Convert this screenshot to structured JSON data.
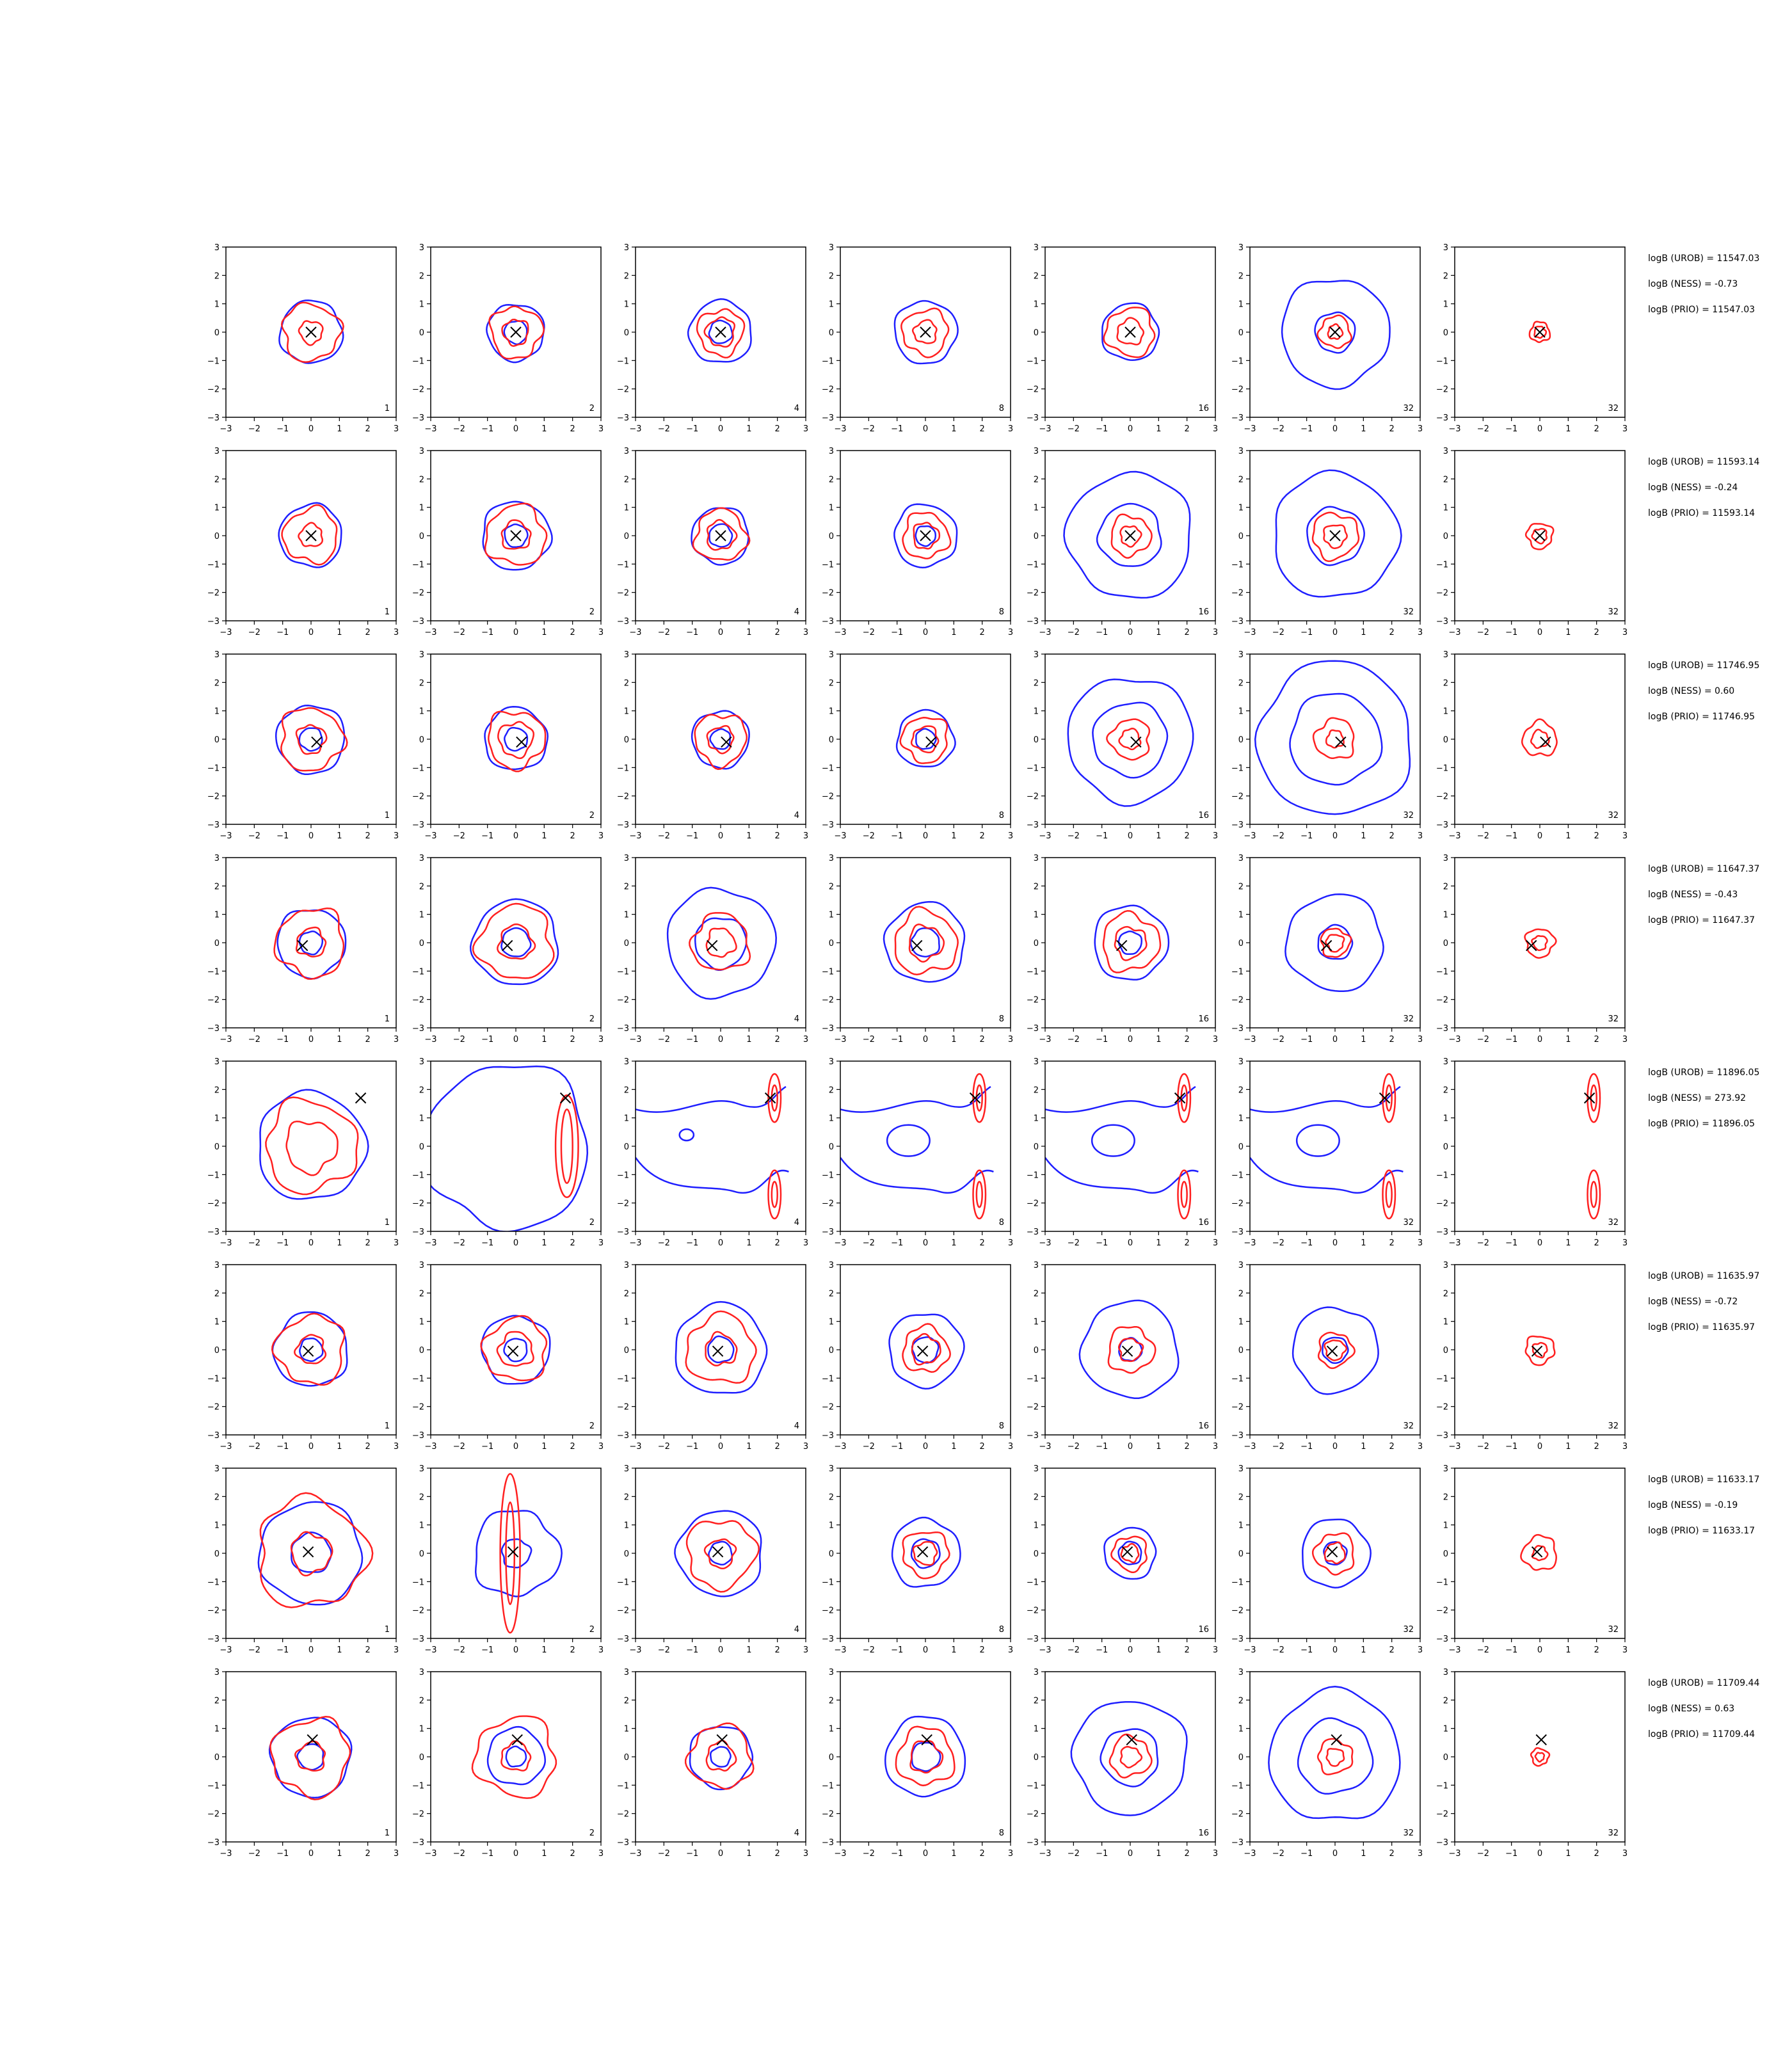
{
  "colors": {
    "outer": "#1f1fff",
    "inner": "#ff2020",
    "marker": "#000000",
    "axes": "#000000"
  },
  "chart_data": {
    "type": "contour-grid",
    "xlim": [
      -3,
      3
    ],
    "ylim": [
      -3,
      3
    ],
    "x_ticks": [
      "−3",
      "−2",
      "−1",
      "0",
      "1",
      "2",
      "3"
    ],
    "y_ticks": [
      "3",
      "2",
      "1",
      "0",
      "−1",
      "−2",
      "−3"
    ],
    "columns": [
      "1",
      "2",
      "4",
      "8",
      "16",
      "32",
      "32"
    ],
    "rows": [
      {
        "annotations": [
          "logB (UROB) = 11547.03",
          "logB (NESS) = -0.73",
          "logB (PRIO) = 11547.03"
        ],
        "marker": [
          0.0,
          0.0
        ],
        "panels": [
          {
            "blue": [
              1.1
            ],
            "red": [
              1.0,
              0.4
            ]
          },
          {
            "blue": [
              1.0,
              0.4
            ],
            "red": [
              0.9,
              0.45
            ]
          },
          {
            "blue": [
              1.1,
              0.4
            ],
            "red": [
              0.8,
              0.5
            ]
          },
          {
            "blue": [
              1.1
            ],
            "red": [
              0.8,
              0.4
            ]
          },
          {
            "blue": [
              1.0
            ],
            "red": [
              0.85,
              0.45
            ]
          },
          {
            "blue": [
              1.9,
              0.7
            ],
            "red": [
              0.55,
              0.25
            ]
          },
          {
            "blue": [],
            "red": [
              0.35,
              0.2
            ]
          }
        ]
      },
      {
        "annotations": [
          "logB (UROB) = 11593.14",
          "logB (NESS) = -0.24",
          "logB (PRIO) = 11593.14"
        ],
        "marker": [
          0.0,
          0.0
        ],
        "panels": [
          {
            "blue": [
              1.1
            ],
            "red": [
              0.95,
              0.4
            ]
          },
          {
            "blue": [
              1.2,
              0.4
            ],
            "red": [
              1.05,
              0.5
            ]
          },
          {
            "blue": [
              1.0,
              0.4
            ],
            "red": [
              0.9,
              0.5
            ]
          },
          {
            "blue": [
              1.1,
              0.35
            ],
            "red": [
              0.8,
              0.45
            ]
          },
          {
            "blue": [
              2.2,
              1.1
            ],
            "red": [
              0.7,
              0.35
            ]
          },
          {
            "blue": [
              2.2,
              1.0
            ],
            "red": [
              0.8,
              0.4
            ]
          },
          {
            "blue": [],
            "red": [
              0.45,
              0.25
            ]
          }
        ]
      },
      {
        "annotations": [
          "logB (UROB) = 11746.95",
          "logB (NESS) = 0.60",
          "logB (PRIO) = 11746.95"
        ],
        "marker": [
          0.2,
          -0.1
        ],
        "panels": [
          {
            "blue": [
              1.2,
              0.4
            ],
            "red": [
              1.1,
              0.5
            ]
          },
          {
            "blue": [
              1.1,
              0.4
            ],
            "red": [
              1.0,
              0.6
            ]
          },
          {
            "blue": [
              1.0,
              0.35
            ],
            "red": [
              0.9,
              0.45
            ]
          },
          {
            "blue": [
              1.0,
              0.35
            ],
            "red": [
              0.8,
              0.45
            ]
          },
          {
            "blue": [
              2.2,
              1.3
            ],
            "red": [
              0.7,
              0.35
            ]
          },
          {
            "blue": [
              2.7,
              1.6
            ],
            "red": [
              0.7,
              0.3
            ]
          },
          {
            "blue": [],
            "red": [
              0.6,
              0.3
            ]
          }
        ]
      },
      {
        "annotations": [
          "logB (UROB) = 11647.37",
          "logB (NESS) = -0.43",
          "logB (PRIO) = 11647.37"
        ],
        "marker": [
          -0.3,
          -0.1
        ],
        "panels": [
          {
            "blue": [
              1.2,
              0.4
            ],
            "red": [
              1.2,
              0.5
            ]
          },
          {
            "blue": [
              1.5,
              0.5
            ],
            "red": [
              1.3,
              0.6
            ]
          },
          {
            "blue": [
              1.9,
              0.9
            ],
            "red": [
              1.0,
              0.5
            ]
          },
          {
            "blue": [
              1.4,
              0.5
            ],
            "red": [
              1.1,
              0.6
            ]
          },
          {
            "blue": [
              1.3,
              0.4
            ],
            "red": [
              1.0,
              0.55
            ]
          },
          {
            "blue": [
              1.7,
              0.6
            ],
            "red": [
              0.5,
              0.3
            ]
          },
          {
            "blue": [],
            "red": [
              0.5,
              0.25
            ]
          }
        ]
      },
      {
        "annotations": [
          "logB (UROB) = 11896.05",
          "logB (NESS) = 273.92",
          "logB (PRIO) = 11896.05"
        ],
        "marker": [
          1.75,
          1.7
        ],
        "panels": [
          {
            "blue": [
              1.9
            ],
            "red": [
              1.6,
              0.9
            ]
          },
          {
            "blue": [
              2.9
            ],
            "red": []
          },
          {
            "blue": [],
            "red": []
          },
          {
            "blue": [],
            "red": []
          },
          {
            "blue": [],
            "red": []
          },
          {
            "blue": [],
            "red": []
          },
          {
            "blue": [],
            "red": []
          }
        ]
      },
      {
        "annotations": [
          "logB (UROB) = 11635.97",
          "logB (NESS) = -0.72",
          "logB (PRIO) = 11635.97"
        ],
        "marker": [
          -0.1,
          -0.05
        ],
        "panels": [
          {
            "blue": [
              1.3,
              0.4
            ],
            "red": [
              1.2,
              0.5
            ]
          },
          {
            "blue": [
              1.2,
              0.4
            ],
            "red": [
              1.1,
              0.6
            ]
          },
          {
            "blue": [
              1.6,
              0.45
            ],
            "red": [
              1.2,
              0.55
            ]
          },
          {
            "blue": [
              1.3,
              0.45
            ],
            "red": [
              0.8,
              0.5
            ]
          },
          {
            "blue": [
              1.7,
              0.4
            ],
            "red": [
              0.8,
              0.4
            ]
          },
          {
            "blue": [
              1.5,
              0.45
            ],
            "red": [
              0.6,
              0.35
            ]
          },
          {
            "blue": [],
            "red": [
              0.5,
              0.25
            ]
          }
        ]
      },
      {
        "annotations": [
          "logB (UROB) = 11633.17",
          "logB (NESS) = -0.19",
          "logB (PRIO) = 11633.17"
        ],
        "marker": [
          -0.1,
          0.05
        ],
        "panels": [
          {
            "blue": [
              1.8,
              0.7
            ],
            "red": [
              1.9,
              0.7
            ]
          },
          {
            "blue": [
              1.5,
              0.5
            ],
            "red": []
          },
          {
            "blue": [
              1.5,
              0.4
            ],
            "red": [
              1.2,
              0.5
            ]
          },
          {
            "blue": [
              1.2,
              0.5
            ],
            "red": [
              0.8,
              0.4
            ]
          },
          {
            "blue": [
              0.9,
              0.4
            ],
            "red": [
              0.6,
              0.3
            ]
          },
          {
            "blue": [
              1.2,
              0.4
            ],
            "red": [
              0.7,
              0.35
            ]
          },
          {
            "blue": [],
            "red": [
              0.6,
              0.25
            ]
          }
        ]
      },
      {
        "annotations": [
          "logB (UROB) = 11709.44",
          "logB (NESS) = 0.63",
          "logB (PRIO) = 11709.44"
        ],
        "marker": [
          0.05,
          0.6
        ],
        "panels": [
          {
            "blue": [
              1.4,
              0.45
            ],
            "red": [
              1.35,
              0.5
            ]
          },
          {
            "blue": [
              1.0,
              0.35
            ],
            "red": [
              1.4,
              0.5
            ]
          },
          {
            "blue": [
              1.1,
              0.35
            ],
            "red": [
              1.1,
              0.5
            ]
          },
          {
            "blue": [
              1.4,
              0.5
            ],
            "red": [
              1.0,
              0.55
            ]
          },
          {
            "blue": [
              2.0,
              1.0
            ],
            "red": [
              0.7,
              0.35
            ]
          },
          {
            "blue": [
              2.3,
              1.3
            ],
            "red": [
              0.6,
              0.3
            ]
          },
          {
            "blue": [],
            "red": [
              0.3,
              0.15
            ]
          }
        ]
      }
    ]
  }
}
